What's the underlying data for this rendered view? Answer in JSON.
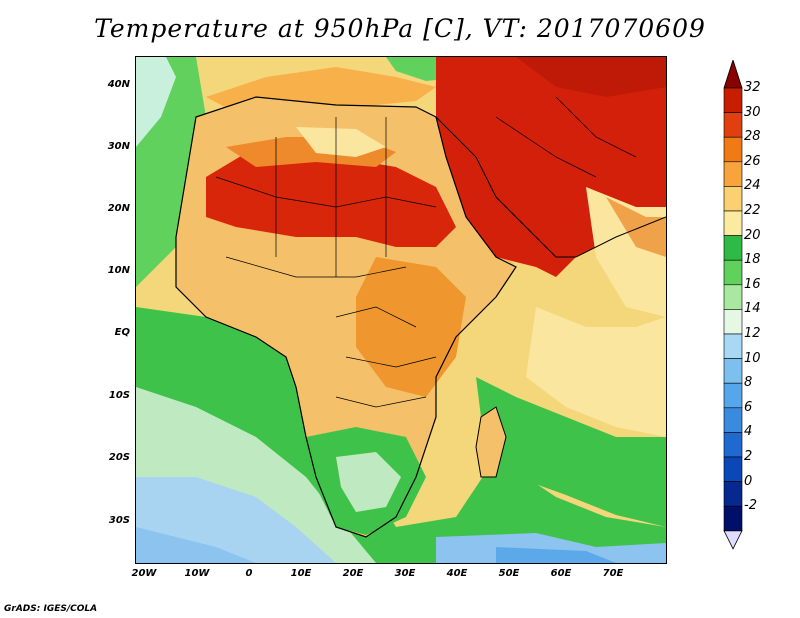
{
  "title": "Temperature at 950hPa [C], VT: 2017070609",
  "credit": "GrADS: IGES/COLA",
  "map": {
    "lat_labels": [
      "40N",
      "30N",
      "20N",
      "10N",
      "EQ",
      "10S",
      "20S",
      "30S"
    ],
    "lon_labels": [
      "20W",
      "10W",
      "0",
      "10E",
      "20E",
      "30E",
      "40E",
      "50E",
      "60E",
      "70E"
    ]
  },
  "colorbar": {
    "labels": [
      "32",
      "30",
      "28",
      "26",
      "24",
      "22",
      "20",
      "18",
      "16",
      "14",
      "12",
      "10",
      "8",
      "6",
      "4",
      "2",
      "0",
      "-2"
    ],
    "colors": [
      "#8a0000",
      "#c81e00",
      "#e04010",
      "#f07a14",
      "#f7a43c",
      "#fbd070",
      "#fbeaa0",
      "#2fba45",
      "#5fd15c",
      "#a8e8a0",
      "#e4f8e4",
      "#a8d8f4",
      "#7cc0f0",
      "#55a6ea",
      "#3a8ae0",
      "#1f6ad0",
      "#0a48b8",
      "#06288f",
      "#00106a",
      "#e0dcff"
    ]
  }
}
